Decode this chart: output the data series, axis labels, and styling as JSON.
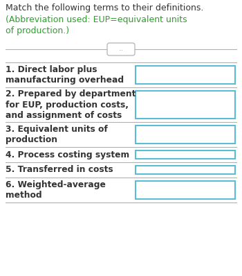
{
  "title_black": "Match the following terms to their definitions.",
  "title_green": "(Abbreviation used: EUP=equivalent units\nof production.)",
  "bg_color": "#ffffff",
  "divider_color": "#b0b0b0",
  "box_border_color": "#5bbdd4",
  "text_color": "#333333",
  "green_color": "#2e9e2e",
  "figw": 3.5,
  "figh": 3.98,
  "dpi": 100,
  "rows": [
    {
      "label": "1. Direct labor plus\nmanufacturing overhead",
      "nlines": 2
    },
    {
      "label": "2. Prepared by department\nfor EUP, production costs,\nand assignment of costs",
      "nlines": 3
    },
    {
      "label": "3. Equivalent units of\nproduction",
      "nlines": 2
    },
    {
      "label": "4. Process costing system",
      "nlines": 1
    },
    {
      "label": "5. Transferred in costs",
      "nlines": 1
    },
    {
      "label": "6. Weighted-average\nmethod",
      "nlines": 2
    }
  ],
  "title_fontsize": 9.0,
  "row_fontsize": 8.8,
  "pill_text": "...",
  "pill_color": "#aaaaaa"
}
